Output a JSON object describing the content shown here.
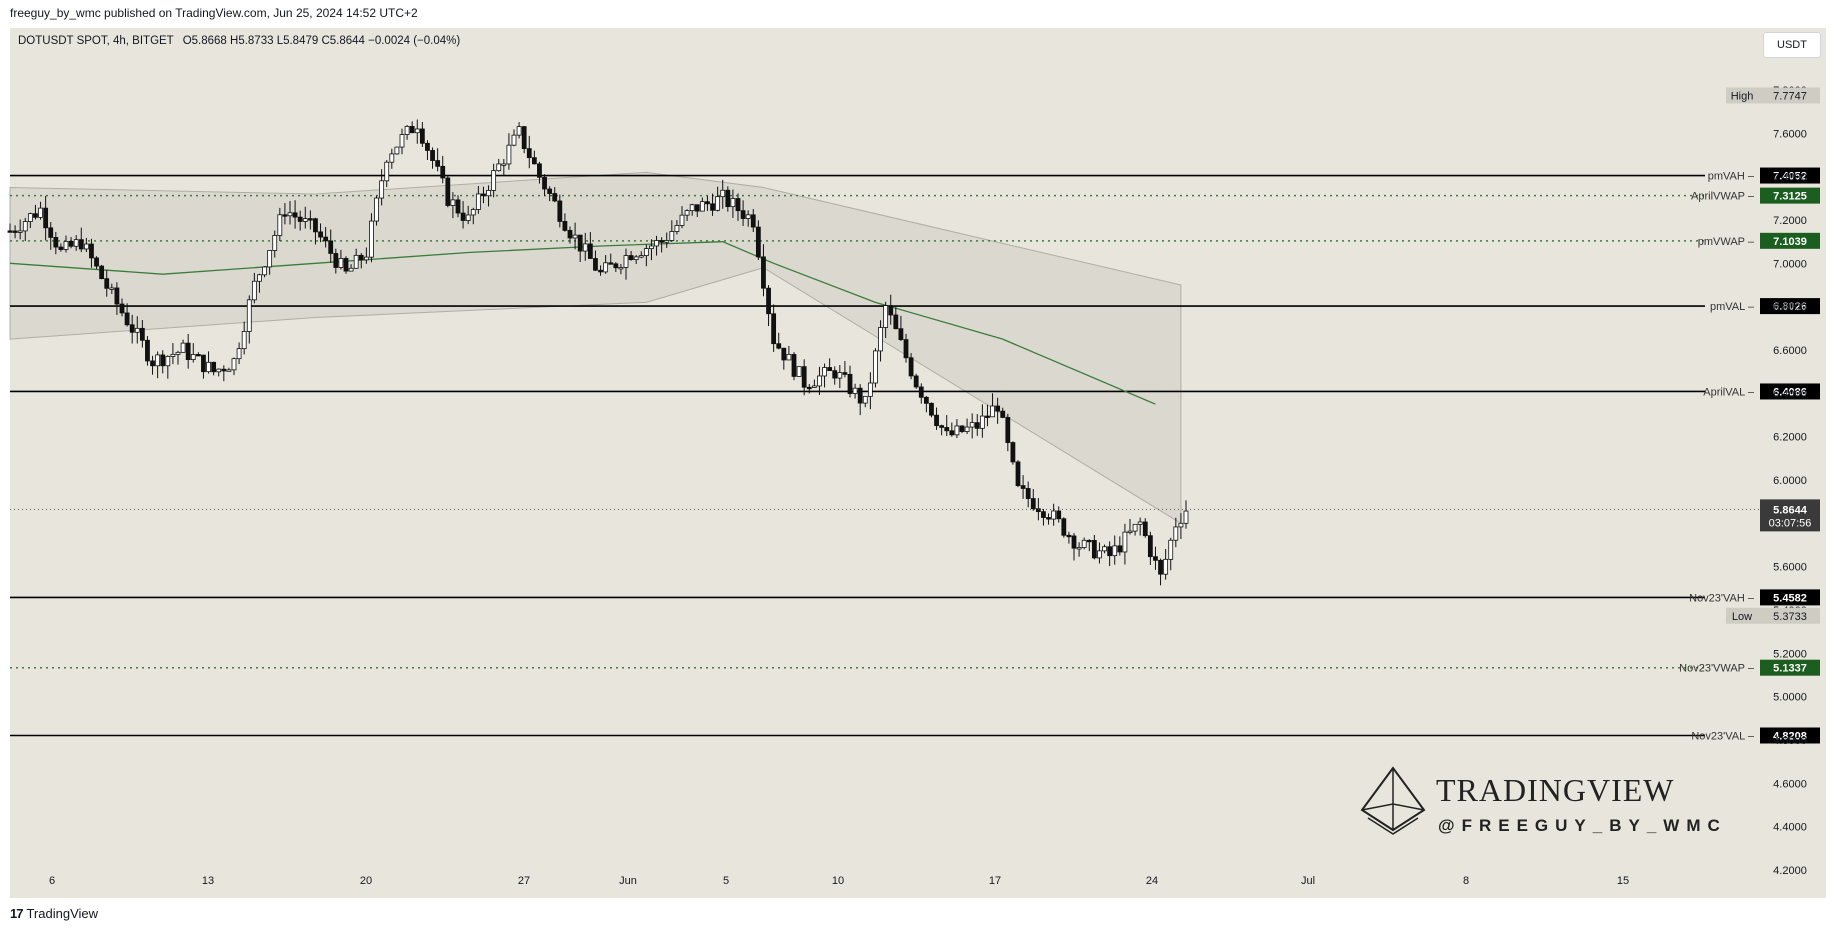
{
  "header": {
    "published": "freeguy_by_wmc published on TradingView.com, Jun 25, 2024 14:52 UTC+2"
  },
  "symbol": {
    "name": "DOTUSDT SPOT, 4h, BITGET",
    "ohlc": "O5.8668 H5.8733 L5.8479 C5.8644 −0.0024 (−0.04%)"
  },
  "currency": "USDT",
  "footer": {
    "brand": "TradingView"
  },
  "watermark": {
    "title": "TRADINGVIEW",
    "handle": "@FREEGUY_BY_WMC"
  },
  "colors": {
    "background": "#e8e6dc",
    "candle": "#111111",
    "vwap": "#3a7d3a",
    "band_fill": "#d6d3cb",
    "band_line": "#b0ada5",
    "label_black": "#000000",
    "label_green": "#1b5e20",
    "label_gray": "#cfccc4"
  },
  "chart_data": {
    "type": "candlestick",
    "price_axis": {
      "ticks": [
        "7.8000",
        "7.6000",
        "7.4000",
        "7.2000",
        "7.0000",
        "6.8000",
        "6.6000",
        "6.4000",
        "6.2000",
        "6.0000",
        "5.8000",
        "5.6000",
        "5.4000",
        "5.2000",
        "5.0000",
        "4.8000",
        "4.6000",
        "4.4000",
        "4.2000"
      ],
      "min": 4.2,
      "max": 7.8
    },
    "time_axis": {
      "ticks": [
        "6",
        "13",
        "20",
        "27",
        "Jun",
        "5",
        "10",
        "17",
        "24",
        "Jul",
        "8",
        "15"
      ]
    },
    "current": {
      "price": "5.8644",
      "countdown": "03:07:56"
    },
    "high": {
      "label": "High",
      "value": "7.7747"
    },
    "low": {
      "label": "Low",
      "value": "5.3733"
    },
    "levels": [
      {
        "name": "pmVAH",
        "value": "7.4052",
        "style": "solid",
        "label_color": "#000000"
      },
      {
        "name": "AprilVWAP",
        "value": "7.3125",
        "style": "dotted",
        "label_color": "#1b5e20"
      },
      {
        "name": "pmVWAP",
        "value": "7.1039",
        "style": "dotted",
        "label_color": "#1b5e20"
      },
      {
        "name": "pmVAL",
        "value": "6.8026",
        "style": "solid",
        "label_color": "#000000"
      },
      {
        "name": "AprilVAL",
        "value": "6.4086",
        "style": "solid",
        "label_color": "#000000"
      },
      {
        "name": "Nov23'VAH",
        "value": "5.4582",
        "style": "solid",
        "label_color": "#000000"
      },
      {
        "name": "Nov23'VWAP",
        "value": "5.1337",
        "style": "dotted",
        "label_color": "#1b5e20"
      },
      {
        "name": "Nov23'VAL",
        "value": "4.8208",
        "style": "solid",
        "label_color": "#000000"
      }
    ],
    "price_path": [
      {
        "t": 0,
        "p": 7.15
      },
      {
        "t": 6,
        "p": 7.25
      },
      {
        "t": 10,
        "p": 7.05
      },
      {
        "t": 14,
        "p": 7.1
      },
      {
        "t": 20,
        "p": 6.85
      },
      {
        "t": 28,
        "p": 6.55
      },
      {
        "t": 34,
        "p": 6.6
      },
      {
        "t": 40,
        "p": 6.5
      },
      {
        "t": 44,
        "p": 6.55
      },
      {
        "t": 48,
        "p": 6.9
      },
      {
        "t": 54,
        "p": 7.25
      },
      {
        "t": 60,
        "p": 7.15
      },
      {
        "t": 66,
        "p": 6.95
      },
      {
        "t": 70,
        "p": 7.05
      },
      {
        "t": 74,
        "p": 7.5
      },
      {
        "t": 80,
        "p": 7.65
      },
      {
        "t": 86,
        "p": 7.3
      },
      {
        "t": 90,
        "p": 7.2
      },
      {
        "t": 96,
        "p": 7.45
      },
      {
        "t": 100,
        "p": 7.6
      },
      {
        "t": 104,
        "p": 7.4
      },
      {
        "t": 110,
        "p": 7.15
      },
      {
        "t": 116,
        "p": 6.95
      },
      {
        "t": 122,
        "p": 7.05
      },
      {
        "t": 128,
        "p": 7.1
      },
      {
        "t": 134,
        "p": 7.25
      },
      {
        "t": 140,
        "p": 7.3
      },
      {
        "t": 146,
        "p": 7.2
      },
      {
        "t": 150,
        "p": 6.65
      },
      {
        "t": 156,
        "p": 6.45
      },
      {
        "t": 162,
        "p": 6.5
      },
      {
        "t": 168,
        "p": 6.35
      },
      {
        "t": 172,
        "p": 6.8
      },
      {
        "t": 178,
        "p": 6.45
      },
      {
        "t": 184,
        "p": 6.2
      },
      {
        "t": 190,
        "p": 6.25
      },
      {
        "t": 194,
        "p": 6.35
      },
      {
        "t": 198,
        "p": 5.95
      },
      {
        "t": 204,
        "p": 5.85
      },
      {
        "t": 210,
        "p": 5.7
      },
      {
        "t": 216,
        "p": 5.65
      },
      {
        "t": 222,
        "p": 5.8
      },
      {
        "t": 226,
        "p": 5.55
      },
      {
        "t": 229,
        "p": 5.8
      },
      {
        "t": 231,
        "p": 5.8644
      }
    ],
    "vwap_line": [
      {
        "t": 0,
        "p": 7.0
      },
      {
        "t": 30,
        "p": 6.95
      },
      {
        "t": 60,
        "p": 7.0
      },
      {
        "t": 90,
        "p": 7.05
      },
      {
        "t": 116,
        "p": 7.08
      },
      {
        "t": 140,
        "p": 7.1
      },
      {
        "t": 150,
        "p": 7.0
      },
      {
        "t": 170,
        "p": 6.82
      },
      {
        "t": 195,
        "p": 6.65
      },
      {
        "t": 225,
        "p": 6.35
      }
    ]
  }
}
